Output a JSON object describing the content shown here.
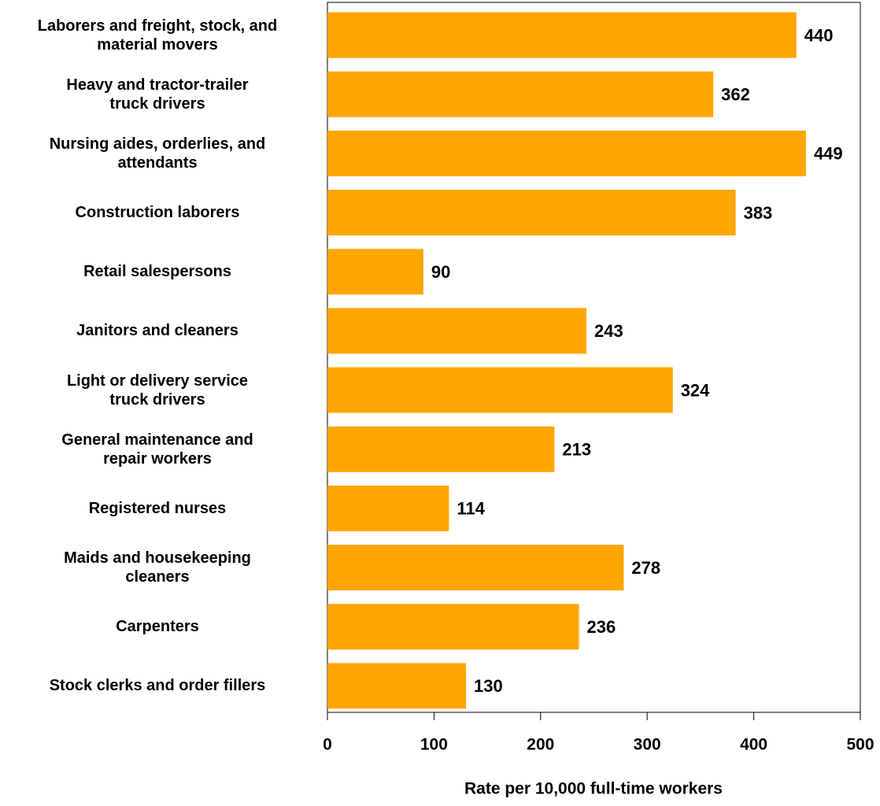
{
  "chart_data": {
    "type": "barh",
    "categories": [
      "Laborers and freight, stock, and\nmaterial movers",
      "Heavy and tractor-trailer\ntruck drivers",
      "Nursing aides, orderlies, and\nattendants",
      "Construction laborers",
      "Retail salespersons",
      "Janitors and cleaners",
      "Light or delivery service\ntruck drivers",
      "General maintenance and\nrepair workers",
      "Registered nurses",
      "Maids and housekeeping\ncleaners",
      "Carpenters",
      "Stock clerks and order fillers"
    ],
    "values": [
      440,
      362,
      449,
      383,
      90,
      243,
      324,
      213,
      114,
      278,
      236,
      130
    ],
    "color": "#ffa500",
    "xlim": [
      0,
      500
    ],
    "xticks": [
      0,
      100,
      200,
      300,
      400,
      500
    ],
    "xlabel": "Rate per 10,000 full-time workers"
  }
}
